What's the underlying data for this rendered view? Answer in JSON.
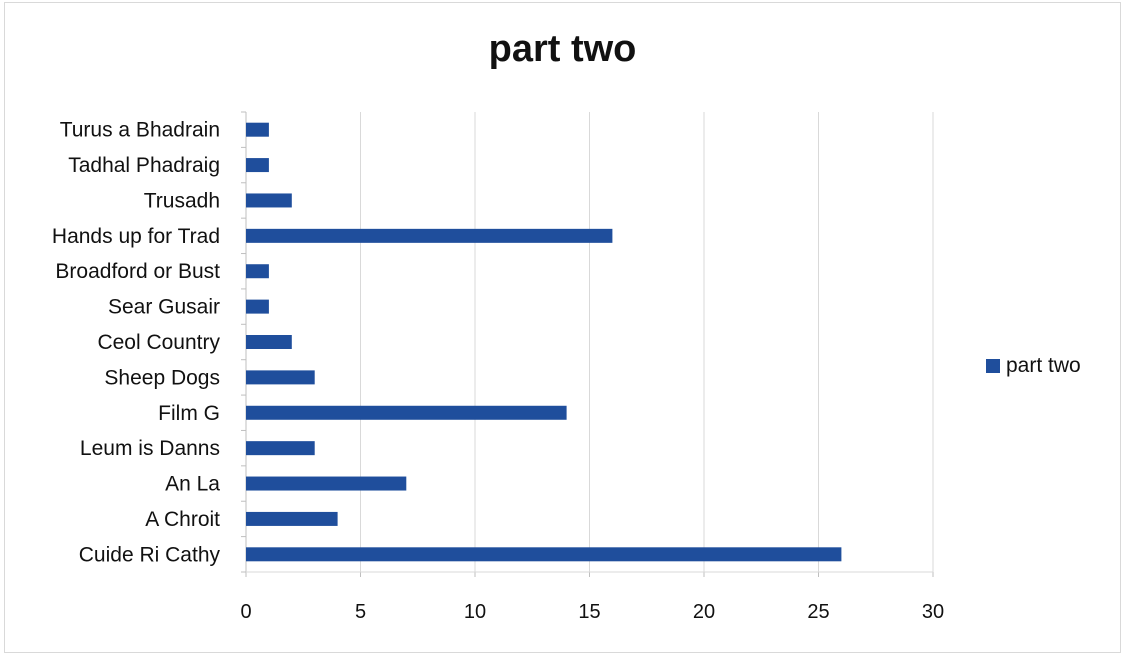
{
  "chart_data": {
    "type": "bar",
    "orientation": "horizontal",
    "title": "part two",
    "categories": [
      "Turus a Bhadrain",
      "Tadhal Phadraig",
      "Trusadh",
      "Hands up for Trad",
      "Broadford or Bust",
      "Sear Gusair",
      "Ceol Country",
      "Sheep Dogs",
      "Film G",
      "Leum is Danns",
      "An La",
      "A Chroit",
      "Cuide Ri Cathy"
    ],
    "series": [
      {
        "name": "part two",
        "values": [
          1,
          1,
          2,
          16,
          1,
          1,
          2,
          3,
          14,
          3,
          7,
          4,
          26
        ],
        "color": "#1f4e9c"
      }
    ],
    "xlim": [
      0,
      30
    ],
    "xticks": [
      0,
      5,
      10,
      15,
      20,
      25,
      30
    ],
    "grid": "vertical",
    "legend": "right"
  }
}
